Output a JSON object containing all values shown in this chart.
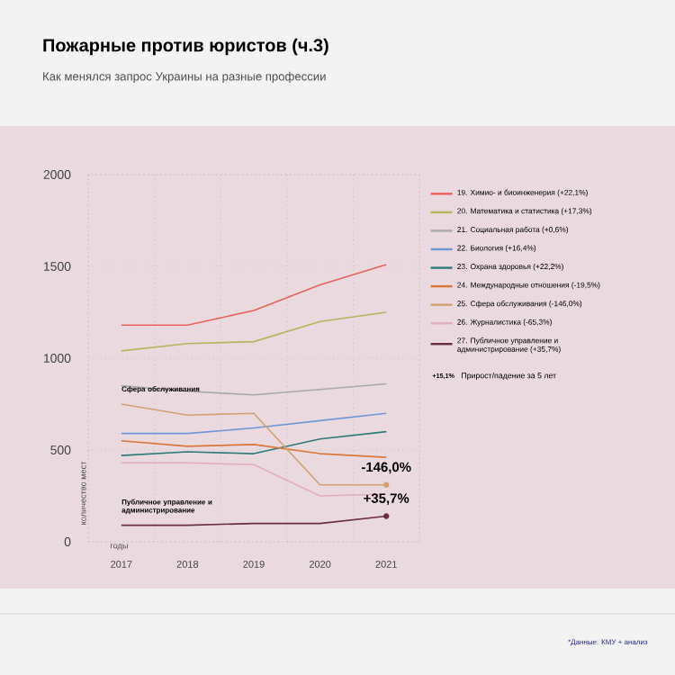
{
  "chart_data": {
    "type": "line",
    "title": "Пожарные против юристов (ч.3)",
    "subtitle": "Как менялся запрос Украины на разные профессии",
    "xlabel": "годы",
    "ylabel": "количество мест",
    "categories": [
      "2017",
      "2018",
      "2019",
      "2020",
      "2021"
    ],
    "series": [
      {
        "name": "19. Химио- и биоинженерия (+22,1%)",
        "color": "#e8605a",
        "values": [
          1180,
          1180,
          1260,
          1400,
          1510
        ]
      },
      {
        "name": "20. Математика и статистика (+17,3%)",
        "color": "#b8b35c",
        "values": [
          1040,
          1080,
          1090,
          1200,
          1250
        ]
      },
      {
        "name": "21. Социальная работа (+0,6%)",
        "color": "#a8a8a8",
        "values": [
          850,
          820,
          800,
          830,
          860
        ]
      },
      {
        "name": "22. Биология (+16,4%)",
        "color": "#6e96d8",
        "values": [
          590,
          590,
          620,
          660,
          700
        ]
      },
      {
        "name": "23. Охрана здоровья (+22,2%)",
        "color": "#2e7a78",
        "values": [
          470,
          490,
          480,
          560,
          600
        ]
      },
      {
        "name": "24. Международные отношения (-19,5%)",
        "color": "#d9773a",
        "values": [
          550,
          520,
          530,
          480,
          460
        ]
      },
      {
        "name": "25. Сфера обслуживания (-146,0%)",
        "color": "#d4a070",
        "values": [
          750,
          690,
          700,
          310,
          310
        ]
      },
      {
        "name": "26. Журналистика (-65,3%)",
        "color": "#e2aebb",
        "values": [
          430,
          430,
          420,
          250,
          260
        ]
      },
      {
        "name": "27. Публичное управление и администрирование (+35,7%)",
        "color": "#6b2d45",
        "values": [
          90,
          90,
          100,
          100,
          140
        ]
      }
    ],
    "ylim": [
      0,
      2000
    ],
    "yticks": [
      0,
      500,
      1000,
      1500,
      2000
    ],
    "grid": true,
    "legend": "right",
    "annotations": [
      {
        "text": "Сфера обслуживания",
        "x": "2017",
        "y": 750
      },
      {
        "text": "Публичное управление и администрирование",
        "x": "2017",
        "y": 90
      },
      {
        "text": "-146,0%",
        "x": "2021",
        "y": 310
      },
      {
        "text": "+35,7%",
        "x": "2021",
        "y": 140
      },
      "+15,1%",
      "Прирост/падение за 5 лет",
      "*Данные: КМУ + анализ"
    ]
  }
}
